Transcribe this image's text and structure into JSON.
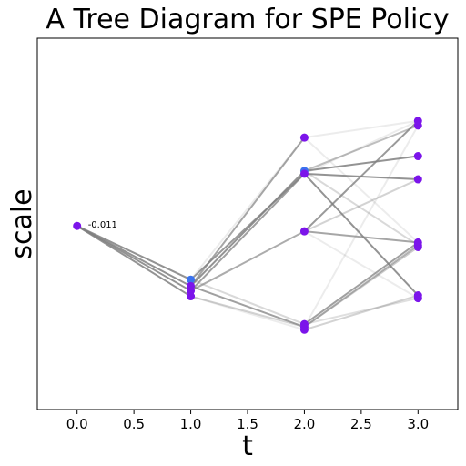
{
  "chart_data": {
    "type": "scatter",
    "title": "A Tree Diagram for SPE Policy",
    "xlabel": "t",
    "ylabel": "scale",
    "xlim": [
      -0.35,
      3.35
    ],
    "ylim": [
      -1.0,
      1.0
    ],
    "x_ticks": [
      0.0,
      0.5,
      1.0,
      1.5,
      2.0,
      2.5,
      3.0
    ],
    "x_tick_labels": [
      "0.0",
      "0.5",
      "1.0",
      "1.5",
      "2.0",
      "2.5",
      "3.0"
    ],
    "y_ticks_visible": false,
    "grid": false,
    "legend": "none",
    "annotations": [
      {
        "text": "-0.011",
        "x": 0.0,
        "y": -0.011
      }
    ],
    "nodes": [
      {
        "id": "n0",
        "x": 0.0,
        "y": -0.011,
        "color": "#7b14ea"
      },
      {
        "id": "n1a",
        "x": 1.0,
        "y": -0.3,
        "color": "#3a72ee"
      },
      {
        "id": "n1b",
        "x": 1.0,
        "y": -0.335,
        "color": "#7b14ea"
      },
      {
        "id": "n1c",
        "x": 1.0,
        "y": -0.36,
        "color": "#7b14ea"
      },
      {
        "id": "n1d",
        "x": 1.0,
        "y": -0.39,
        "color": "#7b14ea"
      },
      {
        "id": "n2a",
        "x": 2.0,
        "y": 0.465,
        "color": "#7b14ea"
      },
      {
        "id": "n2b",
        "x": 2.0,
        "y": 0.285,
        "color": "#3a72ee"
      },
      {
        "id": "n2c",
        "x": 2.0,
        "y": 0.27,
        "color": "#7b14ea"
      },
      {
        "id": "n2d",
        "x": 2.0,
        "y": -0.04,
        "color": "#7b14ea"
      },
      {
        "id": "n2e",
        "x": 2.0,
        "y": -0.54,
        "color": "#7b14ea"
      },
      {
        "id": "n2f",
        "x": 2.0,
        "y": -0.555,
        "color": "#7b14ea"
      },
      {
        "id": "n2g",
        "x": 2.0,
        "y": -0.57,
        "color": "#7b14ea"
      },
      {
        "id": "n3a",
        "x": 3.0,
        "y": 0.555,
        "color": "#7b14ea"
      },
      {
        "id": "n3b",
        "x": 3.0,
        "y": 0.53,
        "color": "#7b14ea"
      },
      {
        "id": "n3c",
        "x": 3.0,
        "y": 0.365,
        "color": "#7b14ea"
      },
      {
        "id": "n3d",
        "x": 3.0,
        "y": 0.24,
        "color": "#7b14ea"
      },
      {
        "id": "n3e",
        "x": 3.0,
        "y": -0.1,
        "color": "#7b14ea"
      },
      {
        "id": "n3f",
        "x": 3.0,
        "y": -0.115,
        "color": "#7b14ea"
      },
      {
        "id": "n3g",
        "x": 3.0,
        "y": -0.125,
        "color": "#7b14ea"
      },
      {
        "id": "n3h",
        "x": 3.0,
        "y": -0.385,
        "color": "#7b14ea"
      },
      {
        "id": "n3i",
        "x": 3.0,
        "y": -0.4,
        "color": "#7b14ea"
      }
    ],
    "edges": [
      {
        "x": [
          0.0,
          1.0
        ],
        "y": [
          -0.011,
          -0.3
        ],
        "opacity": 0.85
      },
      {
        "x": [
          0.0,
          1.0
        ],
        "y": [
          -0.011,
          -0.335
        ],
        "opacity": 0.85
      },
      {
        "x": [
          0.0,
          1.0
        ],
        "y": [
          -0.011,
          -0.36
        ],
        "opacity": 0.85
      },
      {
        "x": [
          0.0,
          1.0
        ],
        "y": [
          -0.011,
          -0.39
        ],
        "opacity": 0.85
      },
      {
        "x": [
          1.0,
          2.0
        ],
        "y": [
          -0.3,
          0.27
        ],
        "opacity": 0.8
      },
      {
        "x": [
          1.0,
          2.0
        ],
        "y": [
          -0.335,
          0.285
        ],
        "opacity": 0.85
      },
      {
        "x": [
          1.0,
          2.0
        ],
        "y": [
          -0.335,
          0.465
        ],
        "opacity": 0.7
      },
      {
        "x": [
          1.0,
          2.0
        ],
        "y": [
          -0.36,
          0.27
        ],
        "opacity": 0.75
      },
      {
        "x": [
          1.0,
          2.0
        ],
        "y": [
          -0.36,
          -0.04
        ],
        "opacity": 0.65
      },
      {
        "x": [
          1.0,
          2.0
        ],
        "y": [
          -0.3,
          0.465
        ],
        "opacity": 0.15
      },
      {
        "x": [
          1.0,
          2.0
        ],
        "y": [
          -0.3,
          -0.54
        ],
        "opacity": 0.3
      },
      {
        "x": [
          1.0,
          2.0
        ],
        "y": [
          -0.335,
          -0.555
        ],
        "opacity": 0.75
      },
      {
        "x": [
          1.0,
          2.0
        ],
        "y": [
          -0.39,
          -0.555
        ],
        "opacity": 0.35
      },
      {
        "x": [
          1.0,
          2.0
        ],
        "y": [
          -0.39,
          -0.57
        ],
        "opacity": 0.15
      },
      {
        "x": [
          2.0,
          3.0
        ],
        "y": [
          0.465,
          0.555
        ],
        "opacity": 0.15
      },
      {
        "x": [
          2.0,
          3.0
        ],
        "y": [
          0.465,
          -0.1
        ],
        "opacity": 0.15
      },
      {
        "x": [
          2.0,
          3.0
        ],
        "y": [
          0.285,
          0.53
        ],
        "opacity": 0.5
      },
      {
        "x": [
          2.0,
          3.0
        ],
        "y": [
          0.285,
          0.365
        ],
        "opacity": 0.85
      },
      {
        "x": [
          2.0,
          3.0
        ],
        "y": [
          0.27,
          0.24
        ],
        "opacity": 0.85
      },
      {
        "x": [
          2.0,
          3.0
        ],
        "y": [
          0.27,
          -0.385
        ],
        "opacity": 0.85
      },
      {
        "x": [
          2.0,
          3.0
        ],
        "y": [
          0.285,
          -0.115
        ],
        "opacity": 0.3
      },
      {
        "x": [
          2.0,
          3.0
        ],
        "y": [
          0.27,
          0.555
        ],
        "opacity": 0.15
      },
      {
        "x": [
          2.0,
          3.0
        ],
        "y": [
          -0.04,
          0.555
        ],
        "opacity": 0.8
      },
      {
        "x": [
          2.0,
          3.0
        ],
        "y": [
          -0.04,
          0.24
        ],
        "opacity": 0.35
      },
      {
        "x": [
          2.0,
          3.0
        ],
        "y": [
          -0.04,
          -0.1
        ],
        "opacity": 0.7
      },
      {
        "x": [
          2.0,
          3.0
        ],
        "y": [
          -0.04,
          -0.4
        ],
        "opacity": 0.15
      },
      {
        "x": [
          2.0,
          3.0
        ],
        "y": [
          -0.54,
          -0.1
        ],
        "opacity": 0.75
      },
      {
        "x": [
          2.0,
          3.0
        ],
        "y": [
          -0.555,
          -0.115
        ],
        "opacity": 0.55
      },
      {
        "x": [
          2.0,
          3.0
        ],
        "y": [
          -0.555,
          -0.125
        ],
        "opacity": 0.4
      },
      {
        "x": [
          2.0,
          3.0
        ],
        "y": [
          -0.57,
          -0.385
        ],
        "opacity": 0.35
      },
      {
        "x": [
          2.0,
          3.0
        ],
        "y": [
          -0.54,
          -0.4
        ],
        "opacity": 0.25
      },
      {
        "x": [
          2.0,
          3.0
        ],
        "y": [
          -0.555,
          0.53
        ],
        "opacity": 0.15
      }
    ]
  }
}
